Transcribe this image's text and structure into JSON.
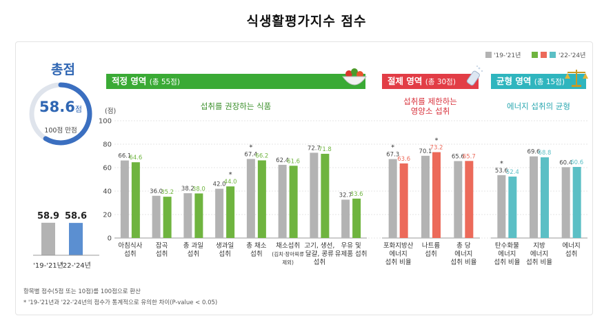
{
  "title": "식생활평가지수  점수",
  "total": {
    "label": "총점",
    "score": "58.6",
    "score_unit": "점",
    "full_score": "100점 만점",
    "score_fraction": 0.586,
    "bars": [
      {
        "period": "'19-'21년",
        "value": 58.9
      },
      {
        "period": "'22-'24년",
        "value": 58.6
      }
    ]
  },
  "legend": {
    "old": "'19-'21년",
    "new": "'22-'24년"
  },
  "sections": {
    "adequacy": {
      "title": "적정 영역",
      "sub": "(총 55점)",
      "subtitle": "섭취를 권장하는 식품"
    },
    "moderation": {
      "title": "절제 영역",
      "sub": "(총 30점)",
      "subtitle": "섭취를 제한하는\n영양소 섭취"
    },
    "balance": {
      "title": "균형 영역",
      "sub": "(총 15점)",
      "subtitle": "에너지 섭취의 균형"
    }
  },
  "footnotes": [
    "항목별 점수(5점 또는 10점)를 100점으로 환산",
    "* '19-'21년과 '22-'24년의 점수가 통계적으로 유의한 차이(P-value < 0.05)"
  ],
  "colors": {
    "gray": "#b3b3b3",
    "green": "#6fb43f",
    "red": "#ec6a5a",
    "teal": "#5bbfc5",
    "total_new": "#5b8fd1",
    "adequacy_header": "#3aaa35",
    "moderation_header": "#e23d46",
    "balance_header": "#2fb5be",
    "ring": "#3b6fc0"
  },
  "chart_data": {
    "type": "bar",
    "ylabel": "(점)",
    "ylim": [
      0,
      100
    ],
    "yticks": [
      0,
      20,
      40,
      60,
      80,
      100
    ],
    "series_names": [
      "'19-'21년",
      "'22-'24년"
    ],
    "categories": [
      {
        "label": "아침식사\n섭취",
        "old": 66.1,
        "new": 64.6,
        "sig": false,
        "group": "adequacy"
      },
      {
        "label": "잡곡\n섭취",
        "old": 36.0,
        "new": 35.2,
        "sig": false,
        "group": "adequacy"
      },
      {
        "label": "총 과일\n섭취",
        "old": 38.2,
        "new": 38.0,
        "sig": false,
        "group": "adequacy"
      },
      {
        "label": "생과일\n섭취",
        "old": 42.0,
        "new": 44.0,
        "sig": true,
        "sig_on": "new",
        "group": "adequacy"
      },
      {
        "label": "총 채소\n섭취",
        "old": 67.4,
        "new": 66.2,
        "sig": true,
        "sig_on": "old",
        "group": "adequacy"
      },
      {
        "label": "채소섭취\n(김치·장아찌류\n제외)",
        "old": 62.4,
        "new": 61.6,
        "sig": false,
        "group": "adequacy"
      },
      {
        "label": "고기, 생선,\n달걀, 콩류\n섭취",
        "old": 72.7,
        "new": 71.8,
        "sig": false,
        "group": "adequacy"
      },
      {
        "label": "우유 및\n유제품 섭취",
        "old": 32.7,
        "new": 33.6,
        "sig": false,
        "group": "adequacy"
      },
      {
        "label": "포화지방산\n에너지\n섭취 비율",
        "old": 67.3,
        "new": 63.6,
        "sig": true,
        "sig_on": "old",
        "group": "moderation"
      },
      {
        "label": "나트륨\n섭취",
        "old": 70.1,
        "new": 73.2,
        "sig": true,
        "sig_on": "new",
        "group": "moderation"
      },
      {
        "label": "총 당\n에너지\n섭취 비율",
        "old": 65.6,
        "new": 65.7,
        "sig": false,
        "group": "moderation"
      },
      {
        "label": "탄수화물\n에너지\n섭취 비율",
        "old": 53.6,
        "new": 52.4,
        "sig": true,
        "sig_on": "old",
        "group": "balance"
      },
      {
        "label": "지방\n에너지\n섭취 비율",
        "old": 69.6,
        "new": 68.8,
        "sig": false,
        "group": "balance"
      },
      {
        "label": "에너지\n섭취",
        "old": 60.4,
        "new": 60.6,
        "sig": false,
        "group": "balance"
      }
    ]
  }
}
